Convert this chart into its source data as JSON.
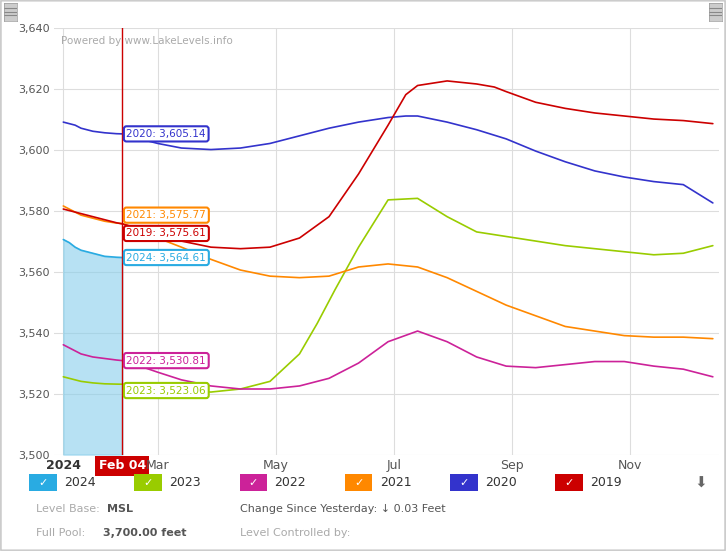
{
  "watermark": "Powered by www.LakeLevels.info",
  "ylim": [
    3500,
    3640
  ],
  "yticks": [
    3500,
    3520,
    3540,
    3560,
    3580,
    3600,
    3620,
    3640
  ],
  "bg_color": "#ffffff",
  "grid_color": "#dddddd",
  "annotations": [
    {
      "text": "2020: 3,605.14",
      "color": "#3333cc",
      "ya": 3605.14,
      "ytext": 3605.14
    },
    {
      "text": "2021: 3,575.77",
      "color": "#ff8800",
      "ya": 3575.77,
      "ytext": 3578.5
    },
    {
      "text": "2019: 3,575.61",
      "color": "#cc0000",
      "ya": 3575.61,
      "ytext": 3572.5
    },
    {
      "text": "2024: 3,564.61",
      "color": "#29abe2",
      "ya": 3564.61,
      "ytext": 3564.61
    },
    {
      "text": "2022: 3,530.81",
      "color": "#cc2299",
      "ya": 3530.81,
      "ytext": 3530.81
    },
    {
      "text": "2023: 3,523.06",
      "color": "#99cc00",
      "ya": 3523.06,
      "ytext": 3521.0
    }
  ],
  "legend_items": [
    {
      "label": "2024",
      "color": "#29abe2"
    },
    {
      "label": "2023",
      "color": "#99cc00"
    },
    {
      "label": "2022",
      "color": "#cc2299"
    },
    {
      "label": "2021",
      "color": "#ff8800"
    },
    {
      "label": "2020",
      "color": "#3333cc"
    },
    {
      "label": "2019",
      "color": "#cc0000"
    }
  ],
  "series": {
    "2024": {
      "color": "#29abe2",
      "x": [
        0.0,
        0.1,
        0.2,
        0.3,
        0.5,
        0.7,
        0.9,
        1.0
      ],
      "y": [
        3570.5,
        3569.5,
        3568.0,
        3567.0,
        3566.0,
        3565.0,
        3564.7,
        3564.61
      ]
    },
    "2023": {
      "color": "#99cc00",
      "x": [
        0.0,
        0.1,
        0.2,
        0.3,
        0.5,
        0.7,
        0.9,
        1.0,
        1.3,
        1.6,
        2.0,
        2.5,
        3.0,
        3.5,
        4.0,
        4.3,
        4.6,
        5.0,
        5.5,
        6.0,
        6.5,
        7.0,
        7.5,
        8.0,
        8.5,
        9.0,
        9.5,
        10.0,
        10.5,
        11.0
      ],
      "y": [
        3525.5,
        3525.0,
        3524.5,
        3524.0,
        3523.5,
        3523.2,
        3523.1,
        3523.06,
        3522.5,
        3521.5,
        3521.0,
        3520.5,
        3521.5,
        3524.0,
        3533.0,
        3543.0,
        3554.0,
        3568.0,
        3583.5,
        3584.0,
        3578.0,
        3573.0,
        3571.5,
        3570.0,
        3568.5,
        3567.5,
        3566.5,
        3565.5,
        3566.0,
        3568.5
      ]
    },
    "2022": {
      "color": "#cc2299",
      "x": [
        0.0,
        0.1,
        0.2,
        0.3,
        0.5,
        0.7,
        0.9,
        1.0,
        1.3,
        1.6,
        2.0,
        2.5,
        3.0,
        3.5,
        4.0,
        4.5,
        5.0,
        5.5,
        6.0,
        6.5,
        7.0,
        7.5,
        8.0,
        8.5,
        9.0,
        9.5,
        10.0,
        10.5,
        11.0
      ],
      "y": [
        3536.0,
        3535.0,
        3534.0,
        3533.0,
        3532.0,
        3531.5,
        3531.0,
        3530.81,
        3529.0,
        3527.0,
        3524.5,
        3522.5,
        3521.5,
        3521.5,
        3522.5,
        3525.0,
        3530.0,
        3537.0,
        3540.5,
        3537.0,
        3532.0,
        3529.0,
        3528.5,
        3529.5,
        3530.5,
        3530.5,
        3529.0,
        3528.0,
        3525.5
      ]
    },
    "2021": {
      "color": "#ff8800",
      "x": [
        0.0,
        0.1,
        0.2,
        0.3,
        0.5,
        0.7,
        0.9,
        1.0,
        1.3,
        1.6,
        2.0,
        2.5,
        3.0,
        3.5,
        4.0,
        4.5,
        5.0,
        5.5,
        6.0,
        6.5,
        7.0,
        7.5,
        8.0,
        8.5,
        9.0,
        9.5,
        10.0,
        10.5,
        11.0
      ],
      "y": [
        3581.5,
        3580.5,
        3579.5,
        3578.5,
        3577.5,
        3576.5,
        3575.9,
        3575.77,
        3573.5,
        3571.0,
        3568.0,
        3564.0,
        3560.5,
        3558.5,
        3558.0,
        3558.5,
        3561.5,
        3562.5,
        3561.5,
        3558.0,
        3553.5,
        3549.0,
        3545.5,
        3542.0,
        3540.5,
        3539.0,
        3538.5,
        3538.5,
        3538.0
      ]
    },
    "2020": {
      "color": "#3333cc",
      "x": [
        0.0,
        0.1,
        0.2,
        0.3,
        0.5,
        0.7,
        0.9,
        1.0,
        1.3,
        1.6,
        2.0,
        2.5,
        3.0,
        3.5,
        4.0,
        4.5,
        5.0,
        5.5,
        5.8,
        6.0,
        6.5,
        7.0,
        7.5,
        8.0,
        8.5,
        9.0,
        9.5,
        10.0,
        10.5,
        11.0
      ],
      "y": [
        3609.0,
        3608.5,
        3608.0,
        3607.0,
        3606.0,
        3605.5,
        3605.2,
        3605.14,
        3603.5,
        3602.0,
        3600.5,
        3600.0,
        3600.5,
        3602.0,
        3604.5,
        3607.0,
        3609.0,
        3610.5,
        3611.0,
        3611.0,
        3609.0,
        3606.5,
        3603.5,
        3599.5,
        3596.0,
        3593.0,
        3591.0,
        3589.5,
        3588.5,
        3582.5
      ]
    },
    "2019": {
      "color": "#cc0000",
      "x": [
        0.0,
        0.1,
        0.2,
        0.3,
        0.5,
        0.7,
        0.9,
        1.0,
        1.3,
        1.6,
        2.0,
        2.5,
        3.0,
        3.5,
        4.0,
        4.5,
        5.0,
        5.5,
        5.8,
        6.0,
        6.5,
        7.0,
        7.3,
        7.5,
        8.0,
        8.5,
        9.0,
        9.5,
        10.0,
        10.5,
        11.0
      ],
      "y": [
        3580.5,
        3580.0,
        3579.5,
        3579.0,
        3578.0,
        3577.0,
        3576.0,
        3575.61,
        3574.0,
        3572.0,
        3570.0,
        3568.0,
        3567.5,
        3568.0,
        3571.0,
        3578.0,
        3592.0,
        3608.0,
        3618.0,
        3621.0,
        3622.5,
        3621.5,
        3620.5,
        3619.0,
        3615.5,
        3613.5,
        3612.0,
        3611.0,
        3610.0,
        3609.5,
        3608.5
      ]
    }
  }
}
